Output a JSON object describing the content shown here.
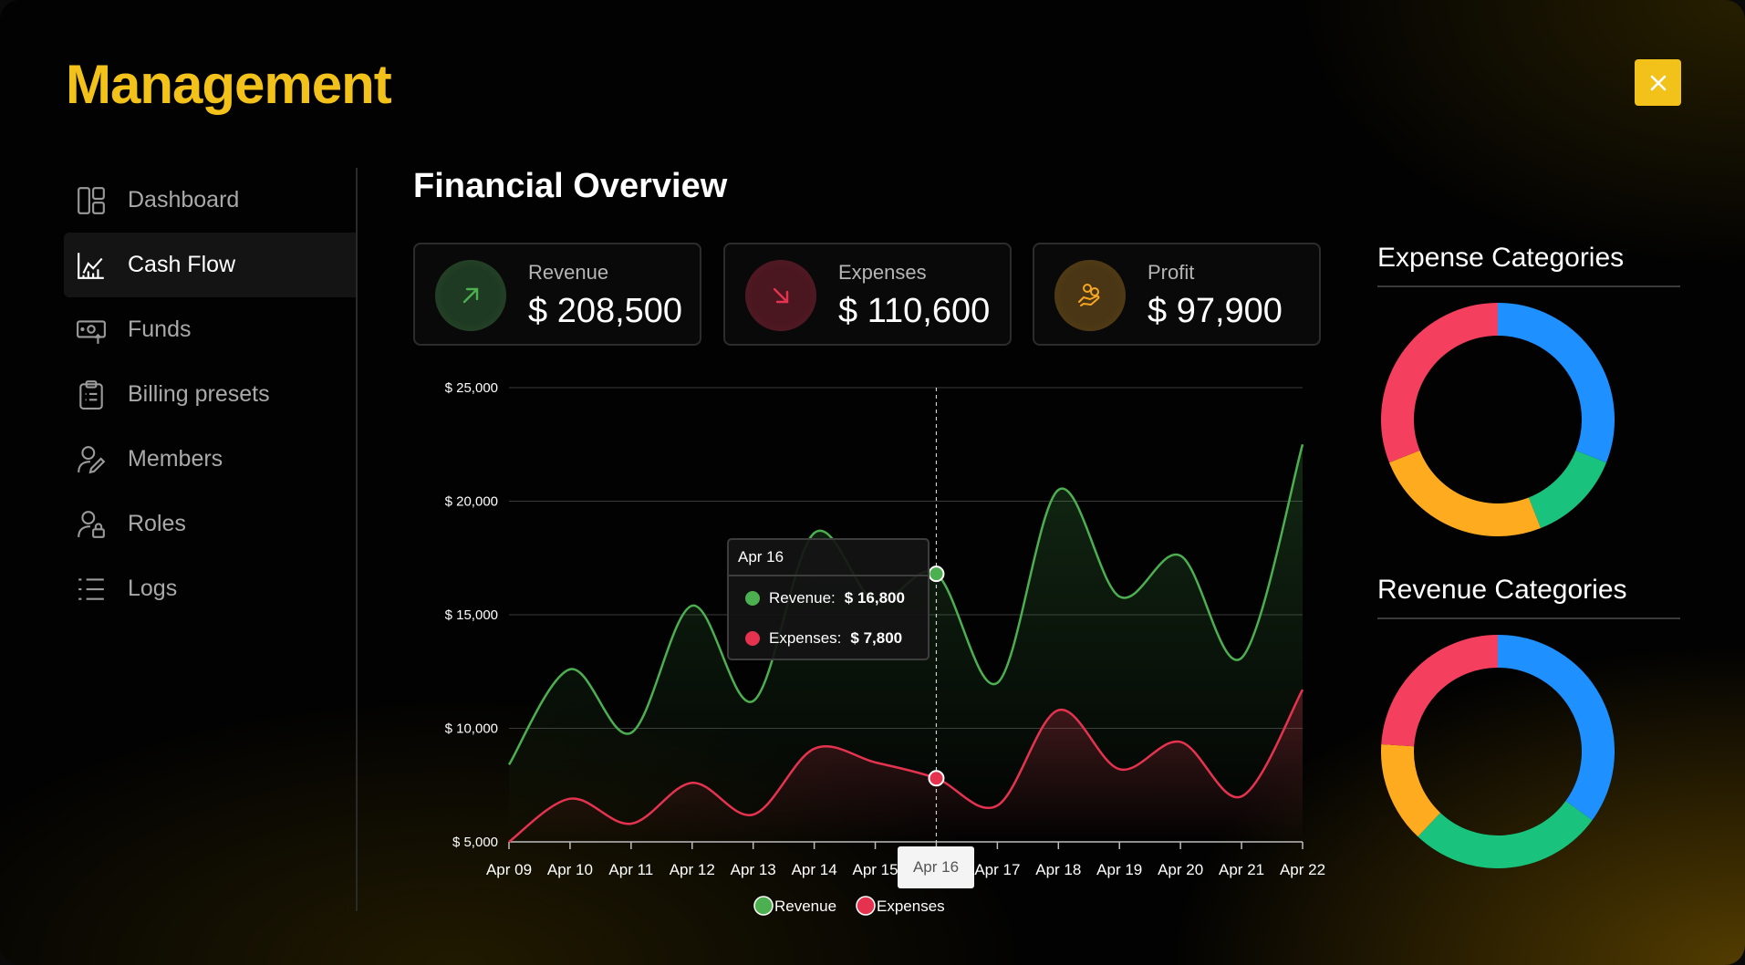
{
  "app": {
    "brand": "Management"
  },
  "sidebar": {
    "items": [
      {
        "label": "Dashboard",
        "icon": "dashboard-icon",
        "active": false
      },
      {
        "label": "Cash Flow",
        "icon": "chart-icon",
        "active": true
      },
      {
        "label": "Funds",
        "icon": "money-icon",
        "active": false
      },
      {
        "label": "Billing presets",
        "icon": "clipboard-icon",
        "active": false
      },
      {
        "label": "Members",
        "icon": "user-edit-icon",
        "active": false
      },
      {
        "label": "Roles",
        "icon": "user-lock-icon",
        "active": false
      },
      {
        "label": "Logs",
        "icon": "list-icon",
        "active": false
      }
    ]
  },
  "main": {
    "title": "Financial Overview",
    "cards": [
      {
        "label": "Revenue",
        "value": "$ 208,500",
        "icon": "arrow-up-right-icon",
        "color": "#4caf50"
      },
      {
        "label": "Expenses",
        "value": "$ 110,600",
        "icon": "arrow-down-right-icon",
        "color": "#e5334f"
      },
      {
        "label": "Profit",
        "value": "$ 97,900",
        "icon": "hand-coins-icon",
        "color": "#f5a623"
      }
    ]
  },
  "colors": {
    "accent": "#f2c21b",
    "revenue": "#4caf50",
    "expenses": "#e5334f",
    "blue": "#1e90ff",
    "green": "#19c37d",
    "orange": "#ffab1f",
    "red": "#f43f5e"
  },
  "chart_data": {
    "type": "area",
    "categories": [
      "Apr 09",
      "Apr 10",
      "Apr 11",
      "Apr 12",
      "Apr 13",
      "Apr 14",
      "Apr 15",
      "Apr 16",
      "Apr 17",
      "Apr 18",
      "Apr 19",
      "Apr 20",
      "Apr 21",
      "Apr 22"
    ],
    "series": [
      {
        "name": "Revenue",
        "values": [
          8400,
          12600,
          9800,
          15400,
          11200,
          18600,
          15600,
          16800,
          12000,
          20500,
          15800,
          17600,
          13100,
          22500
        ]
      },
      {
        "name": "Expenses",
        "values": [
          5000,
          6900,
          5800,
          7600,
          6200,
          9100,
          8500,
          7800,
          6600,
          10800,
          8200,
          9400,
          7000,
          11700
        ]
      }
    ],
    "y_ticks": [
      "$ 5,000",
      "$ 10,000",
      "$ 15,000",
      "$ 20,000",
      "$ 25,000"
    ],
    "ylim": [
      5000,
      25000
    ],
    "grid": true,
    "legend": "bottom",
    "highlight": {
      "category": "Apr 16",
      "title": "Apr 16",
      "rows": [
        {
          "label": "Revenue:",
          "value": "$ 16,800"
        },
        {
          "label": "Expenses:",
          "value": "$ 7,800"
        }
      ]
    }
  },
  "side_charts": [
    {
      "title": "Expense Categories",
      "type": "pie",
      "slices": [
        {
          "value": 31,
          "color": "#1e90ff"
        },
        {
          "value": 13,
          "color": "#19c37d"
        },
        {
          "value": 25,
          "color": "#ffab1f"
        },
        {
          "value": 31,
          "color": "#f43f5e"
        }
      ]
    },
    {
      "title": "Revenue Categories",
      "type": "pie",
      "slices": [
        {
          "value": 35,
          "color": "#1e90ff"
        },
        {
          "value": 27,
          "color": "#19c37d"
        },
        {
          "value": 14,
          "color": "#ffab1f"
        },
        {
          "value": 24,
          "color": "#f43f5e"
        }
      ]
    }
  ]
}
